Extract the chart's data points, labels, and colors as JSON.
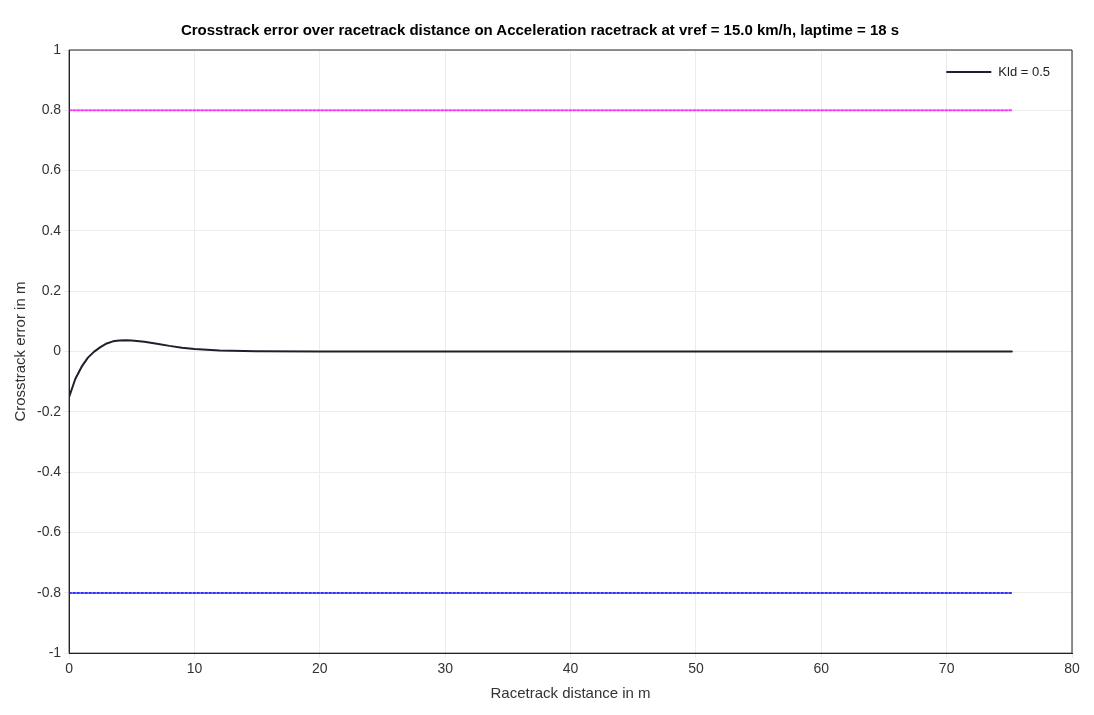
{
  "chart_data": {
    "type": "line",
    "title": "Crosstrack error over racetrack distance on Acceleration racetrack at vref = 15.0 km/h, laptime = 18 s",
    "xlabel": "Racetrack distance in m",
    "ylabel": "Crosstrack error in m",
    "xlim": [
      0,
      80
    ],
    "xticks": [
      0,
      10,
      20,
      30,
      40,
      50,
      60,
      70,
      80
    ],
    "ylim": [
      -1,
      1
    ],
    "yticks": [
      -1,
      -0.8,
      -0.6,
      -0.4,
      -0.2,
      0,
      0.2,
      0.4,
      0.6,
      0.8,
      1
    ],
    "grid": true,
    "legend": "top right",
    "marker": "none",
    "series": [
      {
        "name": "Kld = 0.5",
        "color": "#231d2b",
        "line_style": "solid",
        "x": [
          0,
          0.5,
          1,
          1.5,
          2,
          2.5,
          3,
          3.5,
          4,
          4.5,
          5,
          6,
          7,
          8,
          9,
          10,
          12,
          15,
          20,
          30,
          40,
          50,
          60,
          75.2
        ],
        "values": [
          -0.15,
          -0.09,
          -0.05,
          -0.02,
          0,
          0.015,
          0.027,
          0.034,
          0.037,
          0.038,
          0.037,
          0.033,
          0.026,
          0.019,
          0.013,
          0.009,
          0.004,
          0.001,
          0,
          0,
          0,
          0,
          0,
          0
        ]
      },
      {
        "color": "#ff33ff",
        "line_style": "dotted",
        "x": [
          0,
          75.2
        ],
        "values": [
          0.8,
          0.8
        ]
      },
      {
        "color": "#3333ff",
        "line_style": "dotted",
        "x": [
          0,
          75.2
        ],
        "values": [
          -0.8,
          -0.8
        ]
      }
    ]
  }
}
